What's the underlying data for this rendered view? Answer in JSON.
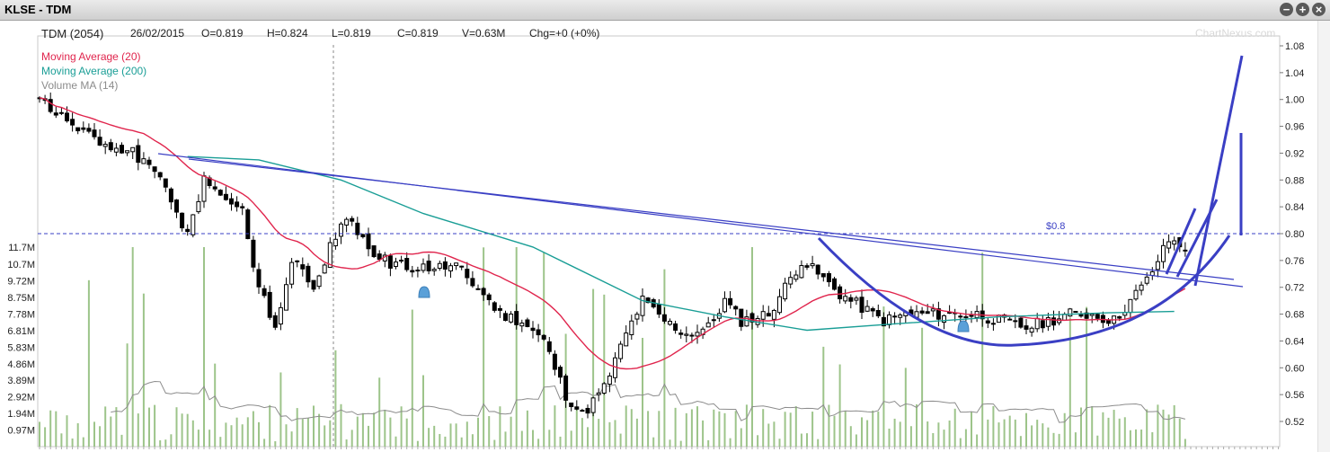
{
  "window": {
    "title": "KLSE - TDM",
    "buttons": [
      "−",
      "+",
      "×"
    ]
  },
  "header": {
    "symbol": "TDM (2054)",
    "date": "26/02/2015",
    "open": "O=0.819",
    "high": "H=0.824",
    "low": "L=0.819",
    "close": "C=0.819",
    "volume": "V=0.63M",
    "change": "Chg=+0 (+0%)"
  },
  "watermark": "ChartNexus.com",
  "legend": [
    {
      "label": "Moving Average (20)",
      "color": "#e0254d"
    },
    {
      "label": "Moving Average (200)",
      "color": "#1a9e96"
    },
    {
      "label": "Volume MA (14)",
      "color": "#8c8c8c"
    }
  ],
  "colors": {
    "candle": "#000000",
    "ma20": "#e0254d",
    "ma200": "#1a9e96",
    "volume_bar": "#9dc48a",
    "volume_ma": "#8c8c8c",
    "annotation": "#3a3fc4",
    "alert_bell": "#5aa0d8"
  },
  "chart_data": {
    "type": "candlestick",
    "price_axis": {
      "ticks": [
        "1.08",
        "1.04",
        "1.00",
        "0.96",
        "0.92",
        "0.88",
        "0.84",
        "0.80",
        "0.76",
        "0.72",
        "0.68",
        "0.64",
        "0.60",
        "0.56",
        "0.52"
      ],
      "range": [
        0.5,
        1.09
      ]
    },
    "volume_axis": {
      "ticks": [
        "11.7M",
        "10.7M",
        "9.72M",
        "8.75M",
        "7.78M",
        "6.81M",
        "5.83M",
        "4.86M",
        "3.89M",
        "2.92M",
        "1.94M",
        "0.97M"
      ],
      "range": [
        0,
        12.2
      ]
    },
    "reference_line": {
      "label": "$0.8",
      "value": 0.8
    },
    "close_path": [
      [
        0,
        1.0
      ],
      [
        6,
        0.96
      ],
      [
        12,
        0.93
      ],
      [
        17,
        0.92
      ],
      [
        22,
        0.88
      ],
      [
        27,
        0.8
      ],
      [
        30,
        0.88
      ],
      [
        33,
        0.86
      ],
      [
        37,
        0.83
      ],
      [
        40,
        0.72
      ],
      [
        43,
        0.66
      ],
      [
        46,
        0.76
      ],
      [
        50,
        0.72
      ],
      [
        54,
        0.8
      ],
      [
        57,
        0.82
      ],
      [
        60,
        0.77
      ],
      [
        63,
        0.76
      ],
      [
        67,
        0.75
      ],
      [
        72,
        0.75
      ],
      [
        76,
        0.75
      ],
      [
        81,
        0.71
      ],
      [
        84,
        0.68
      ],
      [
        88,
        0.67
      ],
      [
        92,
        0.64
      ],
      [
        96,
        0.56
      ],
      [
        99,
        0.53
      ],
      [
        103,
        0.57
      ],
      [
        107,
        0.65
      ],
      [
        110,
        0.7
      ],
      [
        114,
        0.67
      ],
      [
        118,
        0.65
      ],
      [
        122,
        0.66
      ],
      [
        125,
        0.7
      ],
      [
        128,
        0.67
      ],
      [
        133,
        0.68
      ],
      [
        136,
        0.72
      ],
      [
        139,
        0.76
      ],
      [
        142,
        0.74
      ],
      [
        146,
        0.71
      ],
      [
        150,
        0.69
      ],
      [
        154,
        0.67
      ],
      [
        158,
        0.68
      ],
      [
        163,
        0.68
      ],
      [
        167,
        0.68
      ],
      [
        171,
        0.68
      ],
      [
        175,
        0.67
      ],
      [
        180,
        0.66
      ],
      [
        184,
        0.67
      ],
      [
        188,
        0.68
      ],
      [
        192,
        0.68
      ],
      [
        196,
        0.67
      ],
      [
        199,
        0.7
      ],
      [
        202,
        0.73
      ],
      [
        204,
        0.76
      ],
      [
        206,
        0.79
      ],
      [
        209,
        0.78
      ]
    ],
    "annotations": [
      "resistance trendlines",
      "cup/rounding bottom arc",
      "breakout arrows"
    ]
  }
}
